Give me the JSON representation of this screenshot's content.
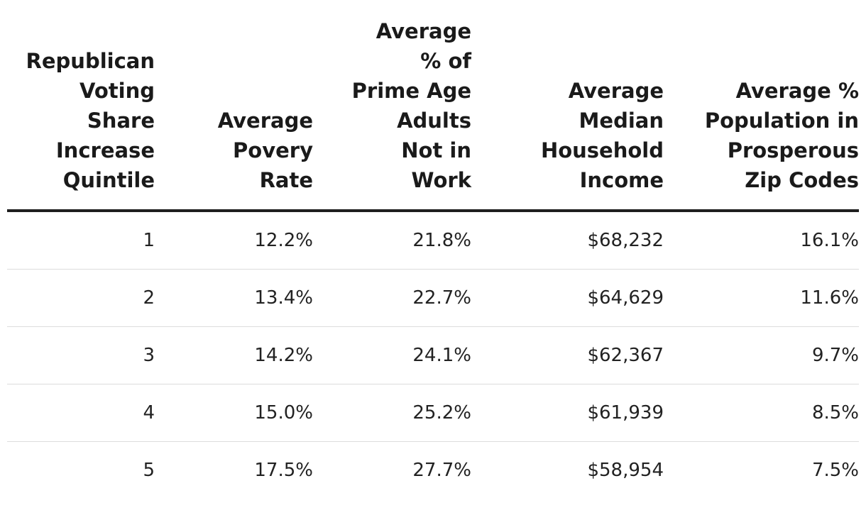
{
  "table": {
    "headers": [
      [
        "Republican",
        "Voting Share",
        "Increase",
        "Quintile"
      ],
      [
        "Average",
        "Povery",
        "Rate"
      ],
      [
        "Average",
        "% of",
        "Prime Age",
        "Adults",
        "Not in",
        "Work"
      ],
      [
        "Average",
        "Median",
        "Household",
        "Income"
      ],
      [
        "Average %",
        "Population in",
        "Prosperous",
        "Zip Codes"
      ]
    ],
    "rows": [
      [
        "1",
        "12.2%",
        "21.8%",
        "$68,232",
        "16.1%"
      ],
      [
        "2",
        "13.4%",
        "22.7%",
        "$64,629",
        "11.6%"
      ],
      [
        "3",
        "14.2%",
        "24.1%",
        "$62,367",
        "9.7%"
      ],
      [
        "4",
        "15.0%",
        "25.2%",
        "$61,939",
        "8.5%"
      ],
      [
        "5",
        "17.5%",
        "27.7%",
        "$58,954",
        "7.5%"
      ]
    ]
  }
}
